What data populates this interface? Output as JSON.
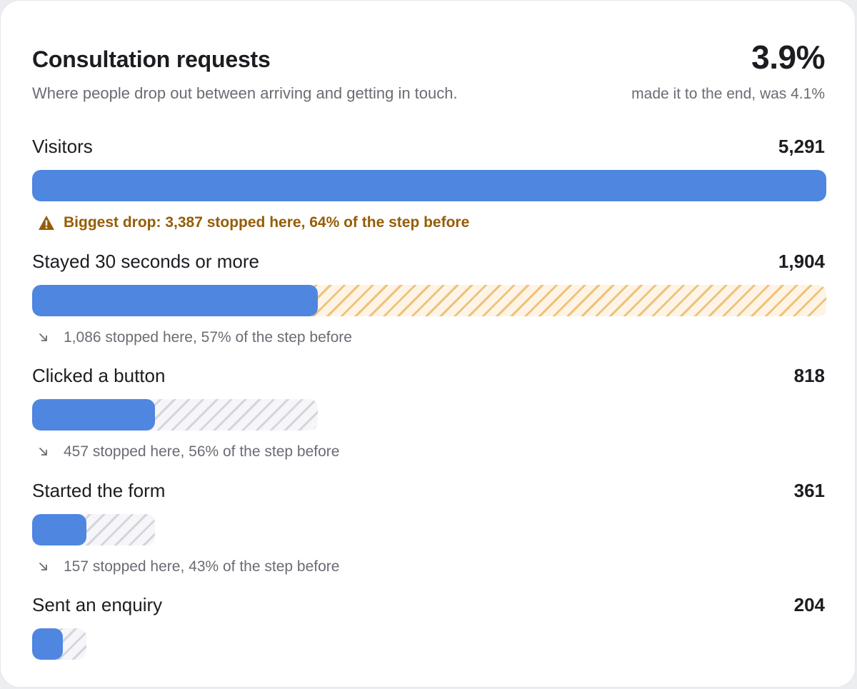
{
  "header": {
    "title": "Consultation requests",
    "subtitle": "Where people drop out between arriving and getting in touch.",
    "kpi_value": "3.9%",
    "kpi_caption": "made it to the end, was 4.1%"
  },
  "colors": {
    "bar": "#4f86e0",
    "warning": "#955d07",
    "warning_hatch": "#efc27b",
    "neutral_hatch": "#d4d5df"
  },
  "chart_data": {
    "type": "bar",
    "orientation": "horizontal-funnel",
    "categories": [
      "Visitors",
      "Stayed 30 seconds or more",
      "Clicked a button",
      "Started the form",
      "Sent an enquiry"
    ],
    "values": [
      5291,
      1904,
      818,
      361,
      204
    ],
    "value_labels": [
      "5,291",
      "1,904",
      "818",
      "361",
      "204"
    ],
    "drops": [
      {
        "text": "Biggest drop: 3,387 stopped here, 64% of the step before",
        "highlight": true,
        "icon": "warning-triangle-icon"
      },
      {
        "text": "1,086 stopped here, 57% of the step before",
        "highlight": false,
        "icon": "arrow-down-right-icon"
      },
      {
        "text": "457 stopped here, 56% of the step before",
        "highlight": false,
        "icon": "arrow-down-right-icon"
      },
      {
        "text": "157 stopped here, 43% of the step before",
        "highlight": false,
        "icon": "arrow-down-right-icon"
      }
    ]
  }
}
